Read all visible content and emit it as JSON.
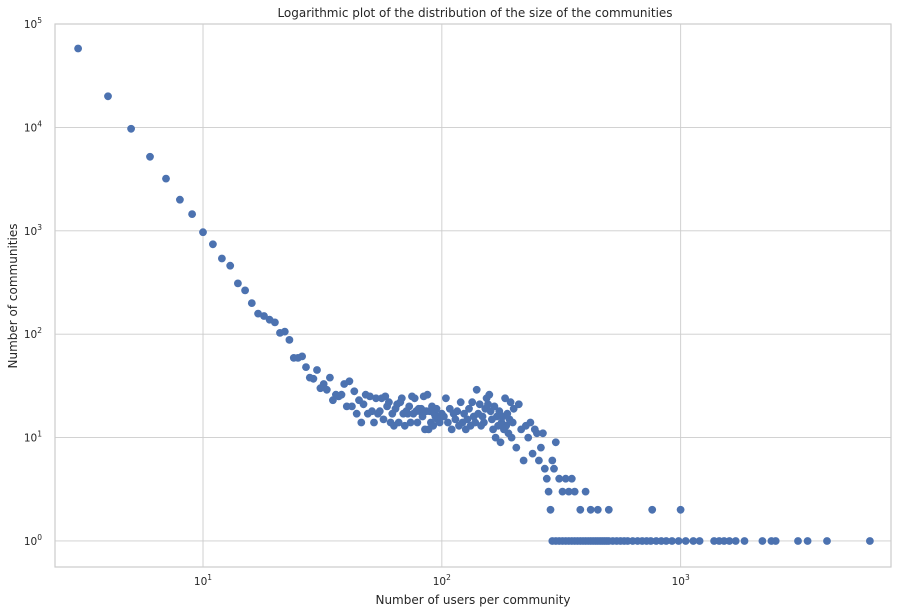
{
  "chart_data": {
    "type": "scatter",
    "title": "Logarithmic plot of the distribution of the size of the communities",
    "xlabel": "Number of users per community",
    "ylabel": "Number of communities",
    "xscale": "log",
    "yscale": "log",
    "xlim": [
      2.4,
      7600
    ],
    "ylim": [
      0.56,
      100000
    ],
    "xticks": [
      {
        "base": "10",
        "exp": "1",
        "value": 10
      },
      {
        "base": "10",
        "exp": "2",
        "value": 100
      },
      {
        "base": "10",
        "exp": "3",
        "value": 1000
      }
    ],
    "yticks": [
      {
        "base": "10",
        "exp": "0",
        "value": 1
      },
      {
        "base": "10",
        "exp": "1",
        "value": 10
      },
      {
        "base": "10",
        "exp": "2",
        "value": 100
      },
      {
        "base": "10",
        "exp": "3",
        "value": 1000
      },
      {
        "base": "10",
        "exp": "4",
        "value": 10000
      },
      {
        "base": "10",
        "exp": "5",
        "value": 100000
      }
    ],
    "grid": true,
    "marker_color": "#4c72b0",
    "series": [
      {
        "points": [
          [
            3,
            58000
          ],
          [
            4,
            20000
          ],
          [
            5,
            9700
          ],
          [
            6,
            5200
          ],
          [
            7,
            3200
          ],
          [
            8,
            2000
          ],
          [
            9,
            1450
          ],
          [
            10,
            970
          ],
          [
            11,
            740
          ],
          [
            12,
            540
          ],
          [
            13,
            460
          ],
          [
            14,
            310
          ],
          [
            15,
            265
          ],
          [
            16,
            200
          ],
          [
            17,
            158
          ],
          [
            18,
            150
          ],
          [
            19,
            138
          ],
          [
            20,
            130
          ],
          [
            21,
            103
          ],
          [
            22,
            106
          ],
          [
            23,
            88
          ],
          [
            24,
            59
          ],
          [
            25,
            59
          ],
          [
            26,
            61
          ],
          [
            27,
            48
          ],
          [
            28,
            38
          ],
          [
            29,
            37
          ],
          [
            30,
            45
          ],
          [
            31,
            30
          ],
          [
            32,
            33
          ],
          [
            33,
            29
          ],
          [
            34,
            38
          ],
          [
            35,
            23
          ],
          [
            36,
            26
          ],
          [
            37,
            25
          ],
          [
            38,
            26
          ],
          [
            39,
            33
          ],
          [
            40,
            20
          ],
          [
            41,
            35
          ],
          [
            42,
            20
          ],
          [
            43,
            28
          ],
          [
            44,
            17
          ],
          [
            45,
            23
          ],
          [
            46,
            14
          ],
          [
            47,
            21
          ],
          [
            48,
            26
          ],
          [
            49,
            17
          ],
          [
            50,
            25
          ],
          [
            51,
            18
          ],
          [
            52,
            14
          ],
          [
            53,
            24
          ],
          [
            54,
            17
          ],
          [
            55,
            18
          ],
          [
            56,
            24
          ],
          [
            57,
            15
          ],
          [
            58,
            25
          ],
          [
            59,
            20
          ],
          [
            60,
            22
          ],
          [
            61,
            14
          ],
          [
            62,
            17
          ],
          [
            63,
            13
          ],
          [
            64,
            19
          ],
          [
            65,
            21
          ],
          [
            66,
            14
          ],
          [
            67,
            22
          ],
          [
            68,
            24
          ],
          [
            69,
            17
          ],
          [
            70,
            13
          ],
          [
            71,
            18
          ],
          [
            72,
            17
          ],
          [
            73,
            20
          ],
          [
            74,
            14
          ],
          [
            75,
            25
          ],
          [
            76,
            17
          ],
          [
            77,
            24
          ],
          [
            78,
            18
          ],
          [
            79,
            14
          ],
          [
            80,
            19
          ],
          [
            81,
            18
          ],
          [
            82,
            19
          ],
          [
            83,
            16
          ],
          [
            84,
            25
          ],
          [
            85,
            12
          ],
          [
            86,
            18
          ],
          [
            87,
            26
          ],
          [
            88,
            12
          ],
          [
            89,
            18
          ],
          [
            90,
            14
          ],
          [
            91,
            20
          ],
          [
            92,
            13
          ],
          [
            93,
            17
          ],
          [
            94,
            16
          ],
          [
            95,
            19
          ],
          [
            96,
            15
          ],
          [
            97,
            15
          ],
          [
            98,
            14
          ],
          [
            100,
            17
          ],
          [
            102,
            16
          ],
          [
            104,
            24
          ],
          [
            106,
            14
          ],
          [
            108,
            19
          ],
          [
            110,
            12
          ],
          [
            112,
            17
          ],
          [
            114,
            15
          ],
          [
            116,
            18
          ],
          [
            118,
            13
          ],
          [
            120,
            22
          ],
          [
            122,
            14
          ],
          [
            124,
            17
          ],
          [
            126,
            12
          ],
          [
            128,
            15
          ],
          [
            130,
            19
          ],
          [
            132,
            13
          ],
          [
            134,
            22
          ],
          [
            136,
            16
          ],
          [
            138,
            14
          ],
          [
            140,
            29
          ],
          [
            142,
            17
          ],
          [
            144,
            21
          ],
          [
            146,
            13
          ],
          [
            148,
            16
          ],
          [
            150,
            14
          ],
          [
            152,
            19
          ],
          [
            154,
            24
          ],
          [
            156,
            21
          ],
          [
            158,
            26
          ],
          [
            160,
            18
          ],
          [
            162,
            15
          ],
          [
            164,
            12
          ],
          [
            166,
            20
          ],
          [
            168,
            10
          ],
          [
            170,
            16
          ],
          [
            172,
            13
          ],
          [
            174,
            18
          ],
          [
            176,
            9
          ],
          [
            178,
            14
          ],
          [
            180,
            16
          ],
          [
            182,
            12
          ],
          [
            184,
            24
          ],
          [
            186,
            13
          ],
          [
            188,
            17
          ],
          [
            190,
            11
          ],
          [
            192,
            15
          ],
          [
            194,
            22
          ],
          [
            196,
            10
          ],
          [
            198,
            14
          ],
          [
            200,
            19
          ],
          [
            205,
            8
          ],
          [
            210,
            21
          ],
          [
            215,
            12
          ],
          [
            220,
            6
          ],
          [
            225,
            13
          ],
          [
            230,
            10
          ],
          [
            235,
            14
          ],
          [
            240,
            7
          ],
          [
            245,
            12
          ],
          [
            250,
            11
          ],
          [
            255,
            6
          ],
          [
            260,
            8
          ],
          [
            265,
            11
          ],
          [
            270,
            5
          ],
          [
            275,
            4
          ],
          [
            280,
            3
          ],
          [
            285,
            2
          ],
          [
            290,
            6
          ],
          [
            295,
            5
          ],
          [
            300,
            9
          ],
          [
            310,
            4
          ],
          [
            320,
            3
          ],
          [
            330,
            4
          ],
          [
            340,
            3
          ],
          [
            350,
            4
          ],
          [
            360,
            3
          ],
          [
            380,
            2
          ],
          [
            400,
            3
          ],
          [
            420,
            2
          ],
          [
            450,
            2
          ],
          [
            500,
            2
          ],
          [
            760,
            2
          ],
          [
            1000,
            2
          ],
          [
            290,
            1
          ],
          [
            300,
            1
          ],
          [
            310,
            1
          ],
          [
            320,
            1
          ],
          [
            330,
            1
          ],
          [
            340,
            1
          ],
          [
            350,
            1
          ],
          [
            360,
            1
          ],
          [
            370,
            1
          ],
          [
            380,
            1
          ],
          [
            390,
            1
          ],
          [
            400,
            1
          ],
          [
            410,
            1
          ],
          [
            420,
            1
          ],
          [
            430,
            1
          ],
          [
            440,
            1
          ],
          [
            450,
            1
          ],
          [
            460,
            1
          ],
          [
            470,
            1
          ],
          [
            480,
            1
          ],
          [
            490,
            1
          ],
          [
            500,
            1
          ],
          [
            520,
            1
          ],
          [
            540,
            1
          ],
          [
            560,
            1
          ],
          [
            580,
            1
          ],
          [
            600,
            1
          ],
          [
            630,
            1
          ],
          [
            660,
            1
          ],
          [
            690,
            1
          ],
          [
            720,
            1
          ],
          [
            750,
            1
          ],
          [
            790,
            1
          ],
          [
            830,
            1
          ],
          [
            870,
            1
          ],
          [
            920,
            1
          ],
          [
            980,
            1
          ],
          [
            1050,
            1
          ],
          [
            1130,
            1
          ],
          [
            1200,
            1
          ],
          [
            1380,
            1
          ],
          [
            1450,
            1
          ],
          [
            1520,
            1
          ],
          [
            1600,
            1
          ],
          [
            1700,
            1
          ],
          [
            1850,
            1
          ],
          [
            2200,
            1
          ],
          [
            2400,
            1
          ],
          [
            2500,
            1
          ],
          [
            3100,
            1
          ],
          [
            3400,
            1
          ],
          [
            4100,
            1
          ],
          [
            6200,
            1
          ]
        ]
      }
    ]
  }
}
